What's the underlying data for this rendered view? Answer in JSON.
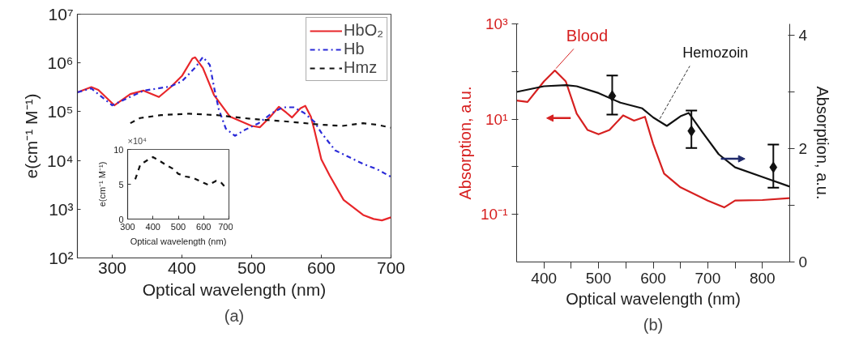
{
  "chart_data": [
    {
      "type": "line",
      "xlabel": "Optical wavelength (nm)",
      "ylabel": "e(cm⁻¹ M⁻¹)",
      "log": true,
      "xlim": [
        250,
        700
      ],
      "ylim": [
        100,
        10000000
      ],
      "xticks": [
        300,
        400,
        500,
        600,
        700
      ],
      "yticks": [
        {
          "value": 100,
          "label": "10²"
        },
        {
          "value": 1000,
          "label": "10³"
        },
        {
          "value": 10000,
          "label": "10⁴"
        },
        {
          "value": 100000,
          "label": "10⁵"
        },
        {
          "value": 1000000,
          "label": "10⁶"
        },
        {
          "value": 10000000,
          "label": "10⁷"
        }
      ],
      "grid": false,
      "legend": "top right",
      "annotations": [
        "(a)"
      ],
      "series": [
        {
          "name": "HbO₂",
          "color": "#e8262a",
          "line_style": "solid",
          "x": [
            250,
            270,
            280,
            303,
            326,
            345,
            367,
            384,
            400,
            415,
            419,
            430,
            446,
            469,
            500,
            512,
            527,
            539,
            550,
            558,
            570,
            577,
            585,
            590,
            600,
            612,
            632,
            660,
            675,
            687,
            700
          ],
          "values": [
            250000,
            320000,
            280000,
            135000,
            230000,
            270000,
            200000,
            320000,
            540000,
            1230000,
            1300000,
            790000,
            220000,
            79000,
            51000,
            48000,
            79000,
            126000,
            95000,
            76000,
            117000,
            132000,
            79000,
            42000,
            10500,
            4900,
            1550,
            760,
            630,
            590,
            680
          ]
        },
        {
          "name": "Hb",
          "color": "#2b2bd8",
          "line_style": "dashdot",
          "x": [
            250,
            270,
            300,
            345,
            384,
            400,
            420,
            430,
            440,
            446,
            453,
            463,
            476,
            490,
            510,
            530,
            545,
            560,
            575,
            590,
            600,
            620,
            640,
            660,
            680,
            700
          ],
          "values": [
            250000,
            300000,
            135000,
            270000,
            330000,
            420000,
            830000,
            1320000,
            910000,
            320000,
            110000,
            45000,
            32000,
            42000,
            58000,
            95000,
            123000,
            123000,
            95000,
            62000,
            37000,
            16000,
            11700,
            8500,
            6600,
            4600
          ]
        },
        {
          "name": "Hmz",
          "color": "#111111",
          "line_style": "dashed",
          "x": [
            326,
            340,
            370,
            410,
            450,
            500,
            550,
            600,
            630,
            660,
            680,
            700
          ],
          "values": [
            58000,
            74000,
            85000,
            91000,
            85000,
            71000,
            63000,
            54000,
            51000,
            58000,
            54000,
            47000
          ]
        }
      ]
    },
    {
      "type": "line",
      "xlabel": "Optical wavelength (nm)",
      "ylabel": "e(cm⁻¹ M⁻¹)",
      "xlim": [
        300,
        700
      ],
      "ylim": [
        0,
        10
      ],
      "xticks": [
        300,
        400,
        500,
        600,
        700
      ],
      "yticks": [
        0,
        5,
        10
      ],
      "grid": false,
      "annotations": [
        "×10⁴"
      ],
      "series": [
        {
          "color": "#111111",
          "line_style": "dashed",
          "x": [
            330,
            350,
            380,
            400,
            420,
            450,
            480,
            500,
            530,
            560,
            600,
            620,
            650,
            670,
            690
          ],
          "values": [
            5.7,
            7.8,
            8.5,
            8.9,
            8.5,
            7.8,
            7.2,
            6.5,
            6.1,
            5.9,
            5.2,
            4.9,
            5.5,
            5.2,
            4.4
          ]
        }
      ]
    },
    {
      "type": "line",
      "xlabel": "Optical wavelength (nm)",
      "ylabel": "Absorption, a.u.",
      "y2label": "Absorption, a.u.",
      "log": "y",
      "xlim": [
        350,
        850
      ],
      "ylim": [
        0.01,
        1000
      ],
      "y2lim": [
        0,
        4.2
      ],
      "xticks": [
        400,
        {
          "value": 450,
          "label": null
        },
        500,
        {
          "value": 550,
          "label": null
        },
        600,
        {
          "value": 650,
          "label": null
        },
        700,
        {
          "value": 750,
          "label": null
        },
        800
      ],
      "yticks": [
        {
          "value": 1000,
          "label": "10³"
        },
        {
          "value": 100,
          "label": null
        },
        {
          "value": 10,
          "label": "10¹"
        },
        {
          "value": 1,
          "label": null
        },
        {
          "value": 0.1,
          "label": "10⁻¹"
        }
      ],
      "y2ticks": [
        0,
        {
          "value": 1,
          "label": null
        },
        2,
        {
          "value": 3,
          "label": null
        },
        4
      ],
      "grid": false,
      "annotations": [
        {
          "text": "Blood",
          "x": 420,
          "y": 105
        },
        {
          "text": "Hemozoin",
          "x": 610,
          "y": 9.2
        },
        "(b)"
      ],
      "series": [
        {
          "color": "#d62020",
          "axis": "y",
          "x": [
            350,
            370,
            400,
            420,
            440,
            460,
            480,
            500,
            520,
            545,
            565,
            585,
            600,
            620,
            650,
            700,
            730,
            750,
            800,
            850
          ],
          "values": [
            24.5,
            23,
            62,
            105,
            62,
            13,
            5.9,
            4.8,
            5.9,
            12,
            9.3,
            11.2,
            3.0,
            0.72,
            0.37,
            0.195,
            0.14,
            0.195,
            0.2,
            0.22
          ]
        },
        {
          "color": "#111111",
          "axis": "y2",
          "x": [
            350,
            400,
            440,
            460,
            500,
            540,
            580,
            600,
            625,
            650,
            665,
            690,
            720,
            750,
            800,
            850
          ],
          "values": [
            3.0,
            3.1,
            3.12,
            3.1,
            2.98,
            2.81,
            2.71,
            2.55,
            2.4,
            2.57,
            2.63,
            2.29,
            1.9,
            1.67,
            1.5,
            1.33
          ]
        },
        {
          "type": "scatter",
          "marker": "diamond",
          "color": "#111111",
          "axis": "y2",
          "x": [
            525,
            670,
            820
          ],
          "values": [
            2.93,
            2.31,
            1.67
          ],
          "errors": [
            [
              2.6,
              3.29
            ],
            [
              2.01,
              2.67
            ],
            [
              1.31,
              2.07
            ]
          ]
        }
      ]
    }
  ]
}
